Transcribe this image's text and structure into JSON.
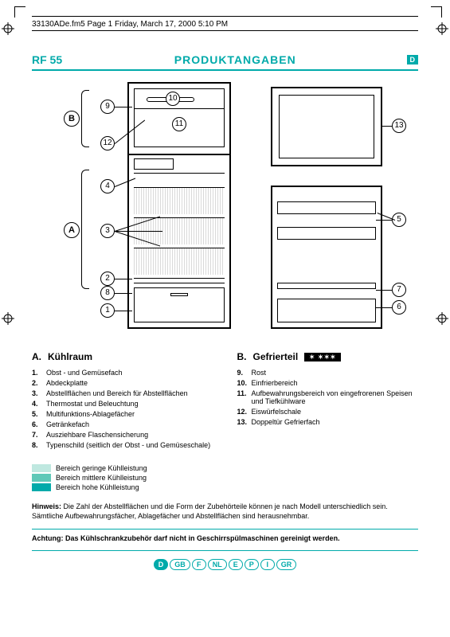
{
  "header": "33130ADe.fm5  Page 1  Friday, March 17, 2000  5:10 PM",
  "model": "RF 55",
  "title": "PRODUKTANGABEN",
  "badge": "D",
  "letters": {
    "A": "A",
    "B": "B"
  },
  "numbers": [
    "1",
    "2",
    "3",
    "4",
    "5",
    "6",
    "7",
    "8",
    "9",
    "10",
    "11",
    "12",
    "13"
  ],
  "sectionA": {
    "letter": "A.",
    "title": "Kühlraum",
    "items": [
      {
        "n": "1.",
        "t": "Obst - und Gemüsefach"
      },
      {
        "n": "2.",
        "t": "Abdeckplatte"
      },
      {
        "n": "3.",
        "t": "Abstellflächen und Bereich für Abstellflächen"
      },
      {
        "n": "4.",
        "t": "Thermostat und Beleuchtung"
      },
      {
        "n": "5.",
        "t": "Multifunktions-Ablagefächer"
      },
      {
        "n": "6.",
        "t": "Getränkefach"
      },
      {
        "n": "7.",
        "t": "Ausziehbare Flaschensicherung"
      },
      {
        "n": "8.",
        "t": "Typenschild (seitlich der Obst - und Gemüseschale)"
      }
    ]
  },
  "sectionB": {
    "letter": "B.",
    "title": "Gefrierteil",
    "stars": "✶ ✶✶✶",
    "items": [
      {
        "n": "9.",
        "t": "Rost"
      },
      {
        "n": "10.",
        "t": "Einfrierbereich"
      },
      {
        "n": "11.",
        "t": "Aufbewahrungsbereich von eingefrorenen Speisen und Tiefkühlware"
      },
      {
        "n": "12.",
        "t": "Eiswürfelschale"
      },
      {
        "n": "13.",
        "t": "Doppeltür Gefrierfach"
      }
    ]
  },
  "legend": [
    {
      "c": "#bfe8e0",
      "t": "Bereich geringe Kühlleistung"
    },
    {
      "c": "#5fc8b8",
      "t": "Bereich mittlere Kühlleistung"
    },
    {
      "c": "#0aa",
      "t": "Bereich hohe Kühlleistung"
    }
  ],
  "hinweis_label": "Hinweis:",
  "hinweis": "Die Zahl der Abstellflächen und die Form der Zubehörteile können je nach Modell unterschiedlich sein. Sämtliche Aufbewahrungsfächer, Ablagefächer und Abstellflächen sind herausnehmbar.",
  "achtung": "Achtung: Das Kühlschrankzubehör darf nicht in Geschirrspülmaschinen gereinigt werden.",
  "langs": [
    "D",
    "GB",
    "F",
    "NL",
    "E",
    "P",
    "I",
    "GR"
  ],
  "activeLang": "D",
  "colors": {
    "teal": "#0aa",
    "lt": "#bfe8e0",
    "md": "#5fc8b8"
  }
}
